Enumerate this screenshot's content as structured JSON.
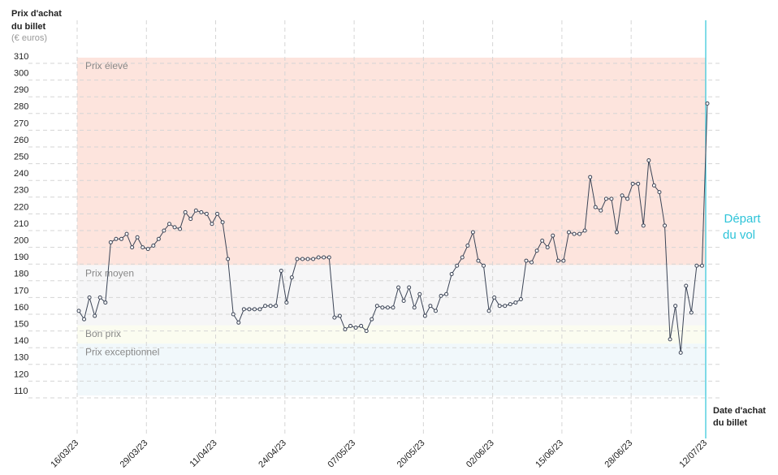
{
  "chart_data": {
    "type": "line",
    "y_label": [
      "Prix d'achat",
      "du billet"
    ],
    "y_unit": "(€ euros)",
    "x_label": [
      "Date d'achat",
      "du billet"
    ],
    "annotation": [
      "Départ",
      "du vol"
    ],
    "categories": [
      "16/03/23",
      null,
      null,
      null,
      null,
      null,
      null,
      null,
      null,
      null,
      null,
      null,
      null,
      "29/03/23",
      null,
      null,
      null,
      null,
      null,
      null,
      null,
      null,
      null,
      null,
      null,
      null,
      "11/04/23",
      null,
      null,
      null,
      null,
      null,
      null,
      null,
      null,
      null,
      null,
      null,
      null,
      "24/04/23",
      null,
      null,
      null,
      null,
      null,
      null,
      null,
      null,
      null,
      null,
      null,
      null,
      "07/05/23",
      null,
      null,
      null,
      null,
      null,
      null,
      null,
      null,
      null,
      null,
      null,
      null,
      "20/05/23",
      null,
      null,
      null,
      null,
      null,
      null,
      null,
      null,
      null,
      null,
      null,
      null,
      "02/06/23",
      null,
      null,
      null,
      null,
      null,
      null,
      null,
      null,
      null,
      null,
      null,
      null,
      "15/06/23",
      null,
      null,
      null,
      null,
      null,
      null,
      null,
      null,
      null,
      null,
      null,
      null,
      "28/06/23",
      null,
      null,
      null,
      null,
      null,
      null,
      null,
      null,
      null,
      null,
      null,
      null,
      null,
      "12/07/23"
    ],
    "series": [
      {
        "name": "Prix",
        "color": "#3b4456",
        "values": [
          162,
          157,
          170,
          159,
          170,
          167,
          203,
          205,
          205,
          208,
          200,
          206,
          200,
          199,
          201,
          205,
          210,
          214,
          212,
          211,
          221,
          217,
          222,
          221,
          220,
          214,
          220,
          215,
          193,
          160,
          155,
          163,
          163,
          163,
          163,
          165,
          165,
          165,
          186,
          167,
          182,
          193,
          193,
          193,
          193,
          194,
          194,
          194,
          158,
          159,
          151,
          153,
          152,
          153,
          150,
          157,
          165,
          164,
          164,
          164,
          176,
          168,
          176,
          164,
          172,
          159,
          165,
          162,
          171,
          172,
          184,
          189,
          194,
          201,
          209,
          192,
          189,
          162,
          170,
          165,
          165,
          166,
          167,
          169,
          192,
          191,
          198,
          204,
          200,
          207,
          192,
          192,
          209,
          208,
          208,
          210,
          242,
          224,
          222,
          229,
          229,
          209,
          231,
          229,
          238,
          238,
          213,
          252,
          237,
          233,
          213,
          145,
          165,
          137,
          177,
          161,
          189,
          189,
          286
        ]
      }
    ],
    "bands": [
      {
        "label": "Prix élevé",
        "from": 186,
        "to": 310,
        "color": "#fde4dd"
      },
      {
        "label": "Prix moyen",
        "from": 150,
        "to": 186,
        "color": "#f6f6f7"
      },
      {
        "label": "Bon prix",
        "from": 139,
        "to": 150,
        "color": "#fbfcf0"
      },
      {
        "label": "Prix exceptionnel",
        "from": 108,
        "to": 139,
        "color": "#f1f8fb"
      }
    ],
    "ylim": [
      100,
      320
    ],
    "yticks": [
      110,
      120,
      130,
      140,
      150,
      160,
      170,
      180,
      190,
      200,
      210,
      220,
      230,
      240,
      250,
      260,
      270,
      280,
      290,
      300,
      310
    ],
    "grid": true
  }
}
